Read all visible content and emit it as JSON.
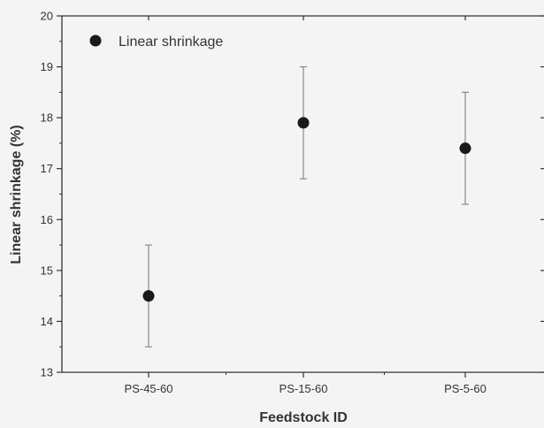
{
  "chart_data": {
    "type": "scatter",
    "title": "",
    "xlabel": "Feedstock ID",
    "ylabel": "Linear shrinkage (%)",
    "categories": [
      "PS-45-60",
      "PS-15-60",
      "PS-5-60"
    ],
    "series": [
      {
        "name": "Linear shrinkage",
        "values": [
          14.5,
          17.9,
          17.4
        ],
        "error": [
          1.0,
          1.1,
          1.1
        ],
        "color": "#1a1a1a"
      }
    ],
    "ylim": [
      13,
      20
    ],
    "yticks": [
      "13",
      "14",
      "15",
      "16",
      "17",
      "18",
      "19",
      "20"
    ],
    "grid": false,
    "legend_position": "top-left",
    "colors": {
      "axis": "#333333",
      "errorbar": "#8a8a8a",
      "background": "#f4f4f4"
    }
  }
}
